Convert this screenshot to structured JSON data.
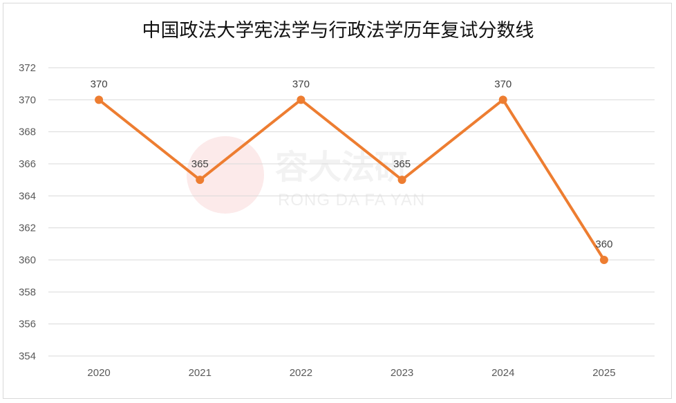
{
  "chart_data": {
    "type": "line",
    "title": "中国政法大学宪法学与行政法学历年复试分数线",
    "categories": [
      "2020",
      "2021",
      "2022",
      "2023",
      "2024",
      "2025"
    ],
    "series": [
      {
        "values": [
          370,
          365,
          370,
          365,
          370,
          360
        ]
      }
    ],
    "ylim": [
      354,
      372
    ],
    "yticks": [
      354,
      356,
      358,
      360,
      362,
      364,
      366,
      368,
      370,
      372
    ],
    "grid": true,
    "data_labels": true,
    "line_color": "#ED7D31",
    "grid_color": "#D9D9D9"
  },
  "watermark": {
    "text_cn": "容大法研",
    "text_en": "RONG DA FA YAN",
    "color": "#F4C7C7"
  }
}
